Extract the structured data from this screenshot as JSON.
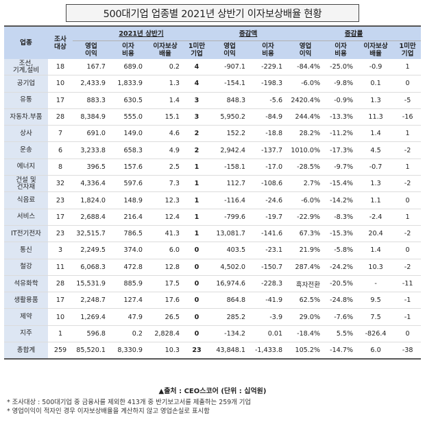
{
  "title": "500대기업 업종별 2021년 상반기 이자보상배율 현황",
  "header": {
    "industry": "업종",
    "count": "조사\n대상",
    "sec_2021": "2021년 상반기",
    "sec_change": "증감액",
    "sec_rate": "증감률",
    "sub": [
      "영업\n이익",
      "이자\n비용",
      "이자보상\n배율",
      "1미만\n기업",
      "영업\n이익",
      "이자\n비용",
      "영업\n이익",
      "이자\n비용",
      "이자보상\n배율",
      "1미만\n기업"
    ]
  },
  "rows": [
    {
      "name": "조선,\n기계,설비",
      "n": "18",
      "op": "167.7",
      "int": "689.0",
      "ratio": "0.2",
      "under1": "4",
      "d_op": "-907.1",
      "d_int": "-229.1",
      "r_op": "-84.4%",
      "r_int": "-25.0%",
      "r_ratio": "-0.9",
      "r_under1": "1"
    },
    {
      "name": "공기업",
      "n": "10",
      "op": "2,433.9",
      "int": "1,833.9",
      "ratio": "1.3",
      "under1": "4",
      "d_op": "-154.1",
      "d_int": "-198.3",
      "r_op": "-6.0%",
      "r_int": "-9.8%",
      "r_ratio": "0.1",
      "r_under1": "0"
    },
    {
      "name": "유통",
      "n": "17",
      "op": "883.3",
      "int": "630.5",
      "ratio": "1.4",
      "under1": "3",
      "d_op": "848.3",
      "d_int": "-5.6",
      "r_op": "2420.4%",
      "r_int": "-0.9%",
      "r_ratio": "1.3",
      "r_under1": "-5"
    },
    {
      "name": "자동차.부품",
      "n": "28",
      "op": "8,384.9",
      "int": "555.0",
      "ratio": "15.1",
      "under1": "3",
      "d_op": "5,950.2",
      "d_int": "-84.9",
      "r_op": "244.4%",
      "r_int": "-13.3%",
      "r_ratio": "11.3",
      "r_under1": "-16"
    },
    {
      "name": "상사",
      "n": "7",
      "op": "691.0",
      "int": "149.0",
      "ratio": "4.6",
      "under1": "2",
      "d_op": "152.2",
      "d_int": "-18.8",
      "r_op": "28.2%",
      "r_int": "-11.2%",
      "r_ratio": "1.4",
      "r_under1": "1"
    },
    {
      "name": "운송",
      "n": "6",
      "op": "3,233.8",
      "int": "658.3",
      "ratio": "4.9",
      "under1": "2",
      "d_op": "2,942.4",
      "d_int": "-137.7",
      "r_op": "1010.0%",
      "r_int": "-17.3%",
      "r_ratio": "4.5",
      "r_under1": "-2"
    },
    {
      "name": "에너지",
      "n": "8",
      "op": "396.5",
      "int": "157.6",
      "ratio": "2.5",
      "under1": "1",
      "d_op": "-158.1",
      "d_int": "-17.0",
      "r_op": "-28.5%",
      "r_int": "-9.7%",
      "r_ratio": "-0.7",
      "r_under1": "1"
    },
    {
      "name": "건설 및\n건자재",
      "n": "32",
      "op": "4,336.4",
      "int": "597.6",
      "ratio": "7.3",
      "under1": "1",
      "d_op": "112.7",
      "d_int": "-108.6",
      "r_op": "2.7%",
      "r_int": "-15.4%",
      "r_ratio": "1.3",
      "r_under1": "-2"
    },
    {
      "name": "식음료",
      "n": "23",
      "op": "1,824.0",
      "int": "148.9",
      "ratio": "12.3",
      "under1": "1",
      "d_op": "-116.4",
      "d_int": "-24.6",
      "r_op": "-6.0%",
      "r_int": "-14.2%",
      "r_ratio": "1.1",
      "r_under1": "0"
    },
    {
      "name": "서비스",
      "n": "17",
      "op": "2,688.4",
      "int": "216.4",
      "ratio": "12.4",
      "under1": "1",
      "d_op": "-799.6",
      "d_int": "-19.7",
      "r_op": "-22.9%",
      "r_int": "-8.3%",
      "r_ratio": "-2.4",
      "r_under1": "1"
    },
    {
      "name": "IT전기전자",
      "n": "23",
      "op": "32,515.7",
      "int": "786.5",
      "ratio": "41.3",
      "under1": "1",
      "d_op": "13,081.7",
      "d_int": "-141.6",
      "r_op": "67.3%",
      "r_int": "-15.3%",
      "r_ratio": "20.4",
      "r_under1": "-2"
    },
    {
      "name": "통신",
      "n": "3",
      "op": "2,249.5",
      "int": "374.0",
      "ratio": "6.0",
      "under1": "0",
      "d_op": "403.5",
      "d_int": "-23.1",
      "r_op": "21.9%",
      "r_int": "-5.8%",
      "r_ratio": "1.4",
      "r_under1": "0"
    },
    {
      "name": "철강",
      "n": "11",
      "op": "6,068.3",
      "int": "472.8",
      "ratio": "12.8",
      "under1": "0",
      "d_op": "4,502.0",
      "d_int": "-150.7",
      "r_op": "287.4%",
      "r_int": "-24.2%",
      "r_ratio": "10.3",
      "r_under1": "-2"
    },
    {
      "name": "석유화학",
      "n": "28",
      "op": "15,531.9",
      "int": "885.9",
      "ratio": "17.5",
      "under1": "0",
      "d_op": "16,974.6",
      "d_int": "-228.3",
      "r_op": "흑자전환",
      "r_int": "-20.5%",
      "r_ratio": "-",
      "r_under1": "-11"
    },
    {
      "name": "생활용품",
      "n": "17",
      "op": "2,248.7",
      "int": "127.4",
      "ratio": "17.6",
      "under1": "0",
      "d_op": "864.8",
      "d_int": "-41.9",
      "r_op": "62.5%",
      "r_int": "-24.8%",
      "r_ratio": "9.5",
      "r_under1": "-1"
    },
    {
      "name": "제약",
      "n": "10",
      "op": "1,269.4",
      "int": "47.9",
      "ratio": "26.5",
      "under1": "0",
      "d_op": "285.2",
      "d_int": "-3.9",
      "r_op": "29.0%",
      "r_int": "-7.6%",
      "r_ratio": "7.5",
      "r_under1": "-1"
    },
    {
      "name": "지주",
      "n": "1",
      "op": "596.8",
      "int": "0.2",
      "ratio": "2,828.4",
      "under1": "0",
      "d_op": "-134.2",
      "d_int": "0.01",
      "r_op": "-18.4%",
      "r_int": "5.5%",
      "r_ratio": "-826.4",
      "r_under1": "0"
    },
    {
      "name": "총합계",
      "n": "259",
      "op": "85,520.1",
      "int": "8,330.9",
      "ratio": "10.3",
      "under1": "23",
      "d_op": "43,848.1",
      "d_int": "-1,433.8",
      "r_op": "105.2%",
      "r_int": "-14.7%",
      "r_ratio": "6.0",
      "r_under1": "-38"
    }
  ],
  "source": "▲출처 : CEO스코어 (단위 : 십억원)",
  "notes": [
    "* 조사대상 : 500대기업 중 금융사를 제외한 413개 중 반기보고서를 제출하는 259개 기업",
    "* 영업이익이 적자인 경우 이자보상배율을 계산하지 않고 영업손실로 표시함"
  ]
}
